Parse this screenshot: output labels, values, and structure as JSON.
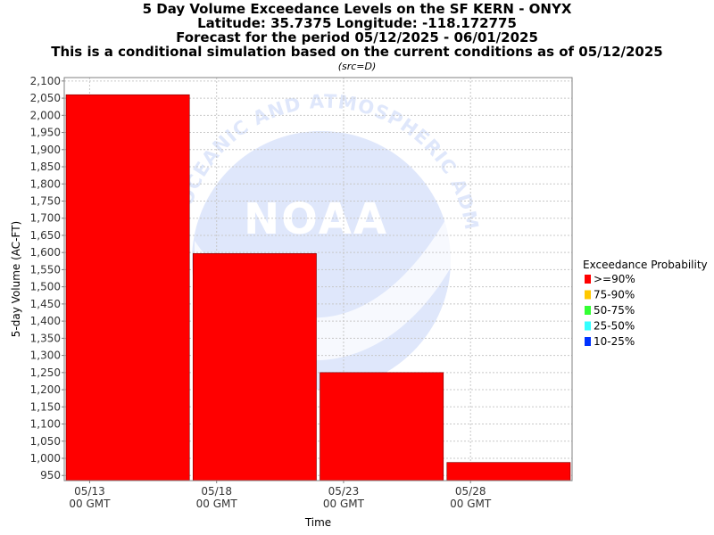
{
  "title_lines": [
    "5 Day Volume Exceedance Levels on the SF KERN - ONYX",
    "Latitude: 35.7375 Longitude: -118.172775",
    "Forecast for the period 05/12/2025 - 06/01/2025",
    "This is a conditional simulation based on the current conditions as of 05/12/2025"
  ],
  "subtitle": "(src=D)",
  "watermark": {
    "text_top": "OCEANIC AND ATMOSPHERIC ADMINISTRATION",
    "logo_text": "NOAA",
    "color": "#dfe7fb"
  },
  "chart_data": {
    "type": "bar",
    "xlabel": "Time",
    "ylabel": "5-day Volume (AC-FT)",
    "ylim": [
      935,
      2110
    ],
    "yticks": [
      950,
      1000,
      1050,
      1100,
      1150,
      1200,
      1250,
      1300,
      1350,
      1400,
      1450,
      1500,
      1550,
      1600,
      1650,
      1700,
      1750,
      1800,
      1850,
      1900,
      1950,
      2000,
      2050,
      2100
    ],
    "ytick_labels": [
      "950",
      "1,000",
      "1,050",
      "1,100",
      "1,150",
      "1,200",
      "1,250",
      "1,300",
      "1,350",
      "1,400",
      "1,450",
      "1,500",
      "1,550",
      "1,600",
      "1,650",
      "1,700",
      "1,750",
      "1,800",
      "1,850",
      "1,900",
      "1,950",
      "2,000",
      "2,050",
      "2,100"
    ],
    "x_range": [
      "2025-05-12",
      "2025-06-01"
    ],
    "xticks": [
      {
        "date": "2025-05-13",
        "label": "05/13",
        "sublabel": "00 GMT"
      },
      {
        "date": "2025-05-18",
        "label": "05/18",
        "sublabel": "00 GMT"
      },
      {
        "date": "2025-05-23",
        "label": "05/23",
        "sublabel": "00 GMT"
      },
      {
        "date": "2025-05-28",
        "label": "05/28",
        "sublabel": "00 GMT"
      }
    ],
    "bars": [
      {
        "start": "2025-05-12",
        "end": "2025-05-17",
        "value": 2060,
        "category": ">=90%"
      },
      {
        "start": "2025-05-17",
        "end": "2025-05-22",
        "value": 1597,
        "category": ">=90%"
      },
      {
        "start": "2025-05-22",
        "end": "2025-05-27",
        "value": 1250,
        "category": ">=90%"
      },
      {
        "start": "2025-05-27",
        "end": "2025-06-01",
        "value": 988,
        "category": ">=90%"
      }
    ],
    "grid": true,
    "legend": {
      "title": "Exceedance Probability",
      "placement": "right",
      "items": [
        {
          "label": ">=90%",
          "color": "#ff0000"
        },
        {
          "label": "75-90%",
          "color": "#ffc800"
        },
        {
          "label": "50-75%",
          "color": "#33ff33"
        },
        {
          "label": "25-50%",
          "color": "#33ffff"
        },
        {
          "label": "10-25%",
          "color": "#0033ff"
        }
      ]
    }
  }
}
